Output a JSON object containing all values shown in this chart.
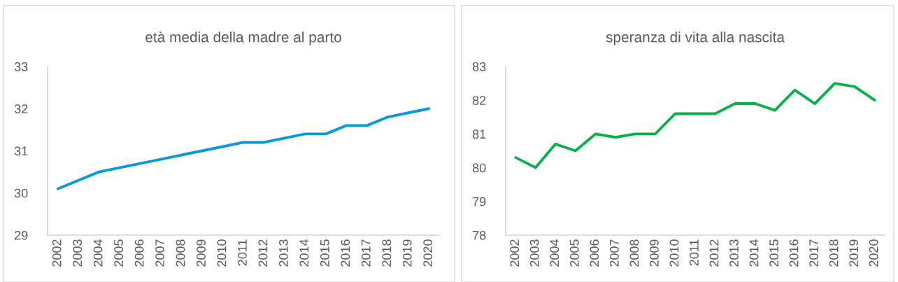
{
  "chart_data": [
    {
      "type": "line",
      "title": "età media della madre al parto",
      "categories": [
        "2002",
        "2003",
        "2004",
        "2005",
        "2006",
        "2007",
        "2008",
        "2009",
        "2010",
        "2011",
        "2012",
        "2013",
        "2014",
        "2015",
        "2016",
        "2017",
        "2018",
        "2019",
        "2020"
      ],
      "series": [
        {
          "color": "#0a9ad8",
          "values": [
            30.1,
            30.3,
            30.5,
            30.6,
            30.7,
            30.8,
            30.9,
            31.0,
            31.1,
            31.2,
            31.2,
            31.3,
            31.4,
            31.4,
            31.6,
            31.6,
            31.8,
            31.9,
            32.0
          ]
        }
      ],
      "ylim": [
        29,
        33
      ],
      "yticks": [
        29,
        30,
        31,
        32,
        33
      ],
      "grid": false,
      "legend": false
    },
    {
      "type": "line",
      "title": "speranza di vita alla nascita",
      "categories": [
        "2002",
        "2003",
        "2004",
        "2005",
        "2006",
        "2007",
        "2008",
        "2009",
        "2010",
        "2011",
        "2012",
        "2013",
        "2014",
        "2015",
        "2016",
        "2017",
        "2018",
        "2019",
        "2020"
      ],
      "series": [
        {
          "color": "#0bb04c",
          "values": [
            80.3,
            80.0,
            80.7,
            80.5,
            81.0,
            80.9,
            81.0,
            81.0,
            81.6,
            81.6,
            81.6,
            81.9,
            81.9,
            81.7,
            82.3,
            81.9,
            82.5,
            82.4,
            82.0
          ]
        }
      ],
      "ylim": [
        78,
        83
      ],
      "yticks": [
        78,
        79,
        80,
        81,
        82,
        83
      ],
      "grid": false,
      "legend": false
    }
  ]
}
